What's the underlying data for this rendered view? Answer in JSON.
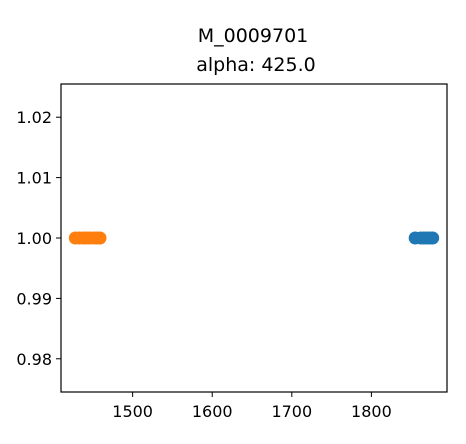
{
  "chart_data": {
    "type": "scatter",
    "title": "M_0009701",
    "subtitle": "alpha: 425.0",
    "xlabel": "",
    "ylabel": "",
    "xlim": [
      1410,
      1895
    ],
    "ylim": [
      0.9745,
      1.0255
    ],
    "xticks": [
      1500,
      1600,
      1700,
      1800
    ],
    "yticks": [
      0.98,
      0.99,
      1.0,
      1.01,
      1.02
    ],
    "ytick_labels": [
      "0.98",
      "0.99",
      "1.00",
      "1.01",
      "1.02"
    ],
    "grid": false,
    "series": [
      {
        "color": "#ff7f0e",
        "points": [
          {
            "x": 1428,
            "y": 1.0
          },
          {
            "x": 1433,
            "y": 1.0
          },
          {
            "x": 1438,
            "y": 1.0
          },
          {
            "x": 1442,
            "y": 1.0
          },
          {
            "x": 1446,
            "y": 1.0
          },
          {
            "x": 1451,
            "y": 1.0
          },
          {
            "x": 1455,
            "y": 1.0
          },
          {
            "x": 1459,
            "y": 1.0
          }
        ]
      },
      {
        "color": "#1f77b4",
        "points": [
          {
            "x": 1855,
            "y": 1.0
          },
          {
            "x": 1862,
            "y": 1.0
          },
          {
            "x": 1866,
            "y": 1.0
          },
          {
            "x": 1870,
            "y": 1.0
          },
          {
            "x": 1874,
            "y": 1.0
          },
          {
            "x": 1877,
            "y": 1.0
          }
        ]
      }
    ]
  }
}
